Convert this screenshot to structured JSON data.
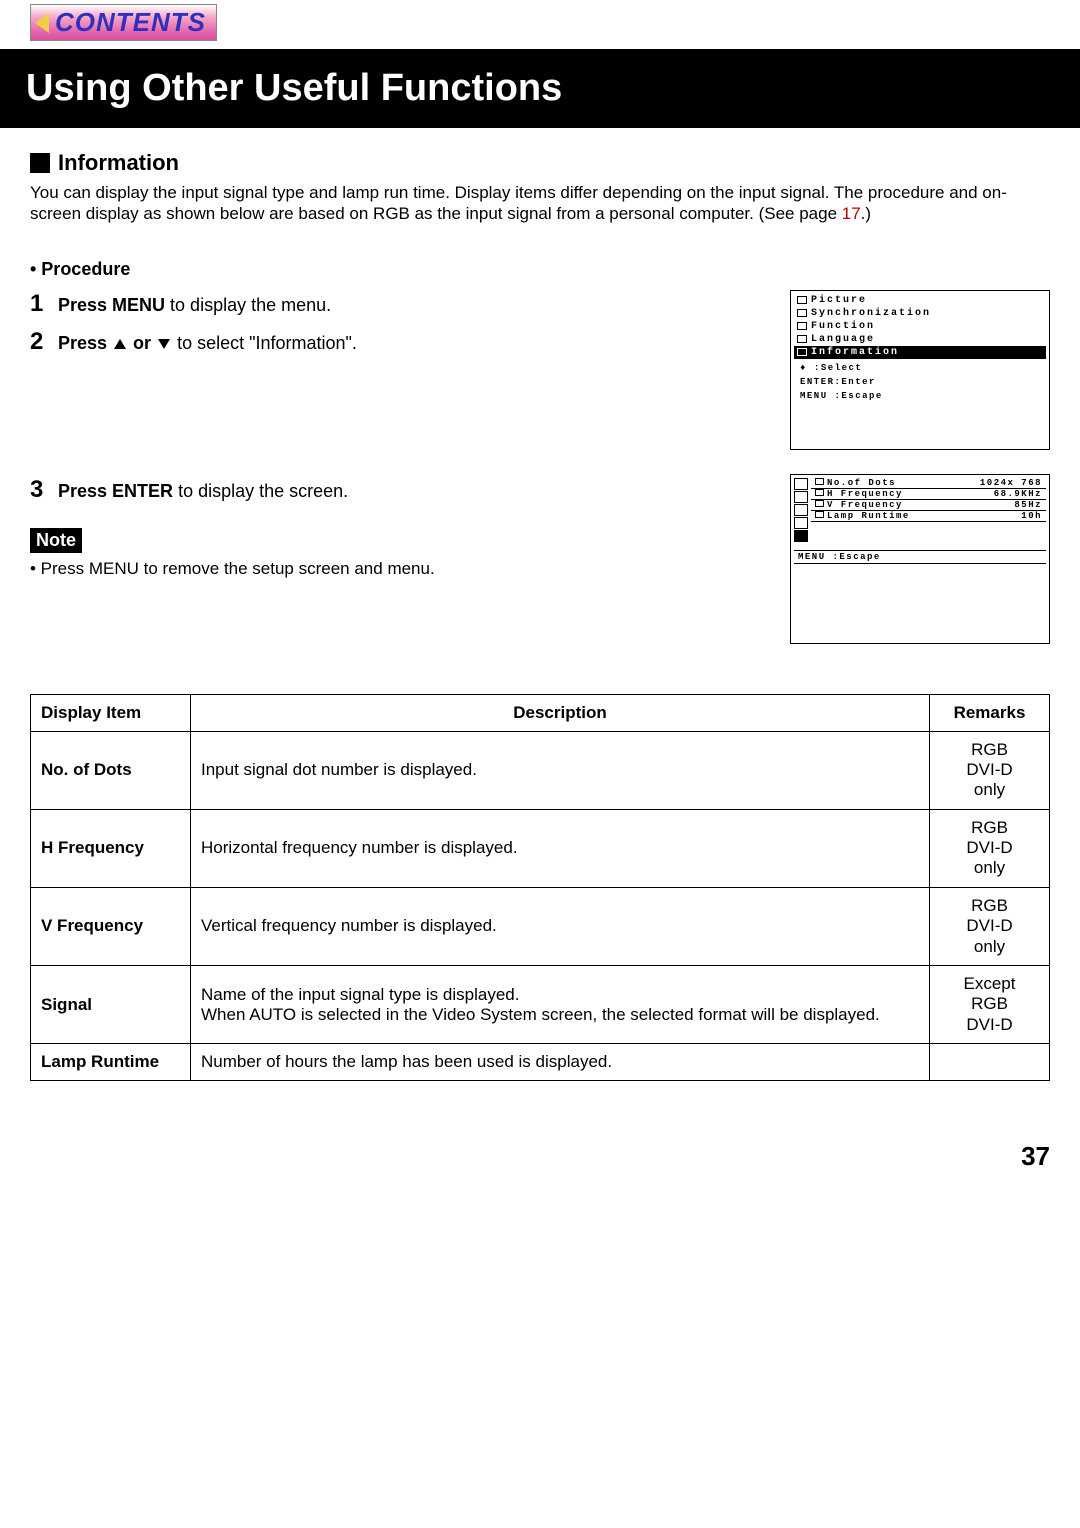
{
  "contents_label": "CONTENTS",
  "title": "Using Other Useful Functions",
  "section": "Information",
  "intro": "You can display the input signal type and lamp run time. Display items differ depending on the input signal. The procedure and on-screen display as shown below are based on RGB as the input signal from a personal computer. (See page ",
  "intro_page_ref": "17",
  "intro_tail": ".)",
  "procedure_label": "• Procedure",
  "steps": {
    "s1_num": "1",
    "s1_bold": "Press MENU",
    "s1_rest": " to display the menu.",
    "s2_num": "2",
    "s2_bold_a": "Press ",
    "s2_bold_b": " or ",
    "s2_rest": " to select \"Information\".",
    "s3_num": "3",
    "s3_bold": "Press ENTER",
    "s3_rest": " to display the screen."
  },
  "note_label": "Note",
  "note_text": "• Press MENU to remove the setup screen and menu.",
  "osd_menu": {
    "items": [
      "Picture",
      "Synchronization",
      "Function",
      "Language",
      "Information"
    ],
    "selected_index": 4,
    "hints": [
      ":Select",
      "ENTER:Enter",
      "MENU :Escape"
    ]
  },
  "osd_info": {
    "rows": [
      {
        "label": "No.of Dots",
        "value": "1024x 768"
      },
      {
        "label": "H Frequency",
        "value": "68.9KHz"
      },
      {
        "label": "V Frequency",
        "value": "85Hz"
      },
      {
        "label": "Lamp Runtime",
        "value": "10h"
      }
    ],
    "escape": "MENU :Escape"
  },
  "table": {
    "headers": [
      "Display Item",
      "Description",
      "Remarks"
    ],
    "rows": [
      {
        "item": "No. of Dots",
        "desc": "Input signal dot number is displayed.",
        "remarks": [
          "RGB",
          "DVI-D",
          "only"
        ]
      },
      {
        "item": "H Frequency",
        "desc": "Horizontal frequency number is displayed.",
        "remarks": [
          "RGB",
          "DVI-D",
          "only"
        ]
      },
      {
        "item": "V Frequency",
        "desc": "Vertical frequency number is displayed.",
        "remarks": [
          "RGB",
          "DVI-D",
          "only"
        ]
      },
      {
        "item": "Signal",
        "desc": "Name of the input signal type is displayed.\nWhen AUTO is selected in the Video System screen, the selected format will be displayed.",
        "remarks": [
          "Except",
          "RGB",
          "DVI-D"
        ]
      },
      {
        "item": "Lamp Runtime",
        "desc": "Number of hours the lamp has been used is displayed.",
        "remarks": []
      }
    ]
  },
  "page_number": "37"
}
